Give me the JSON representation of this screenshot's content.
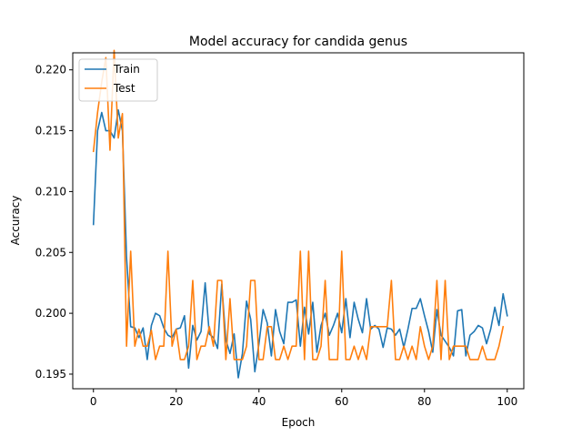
{
  "chart_data": {
    "type": "line",
    "title": "Model accuracy for candida genus",
    "xlabel": "Epoch",
    "ylabel": "Accuracy",
    "xlim": [
      -5,
      104
    ],
    "ylim": [
      0.1938,
      0.2214
    ],
    "xticks": [
      0,
      20,
      40,
      60,
      80,
      100
    ],
    "yticks": [
      0.195,
      0.2,
      0.205,
      0.21,
      0.215,
      0.22
    ],
    "ytick_labels": [
      "0.195",
      "0.200",
      "0.205",
      "0.210",
      "0.215",
      "0.220"
    ],
    "legend_position": "top-left",
    "grid": false,
    "series": [
      {
        "name": "Train",
        "color": "#1f77b4",
        "values": [
          0.2073,
          0.215,
          0.2165,
          0.215,
          0.215,
          0.2144,
          0.2167,
          0.215,
          0.2046,
          0.1989,
          0.1988,
          0.198,
          0.1988,
          0.1962,
          0.199,
          0.2,
          0.1998,
          0.1988,
          0.1982,
          0.198,
          0.1987,
          0.1988,
          0.1998,
          0.1955,
          0.199,
          0.1978,
          0.1985,
          0.2025,
          0.1983,
          0.198,
          0.1971,
          0.2024,
          0.1978,
          0.1967,
          0.1983,
          0.1947,
          0.1967,
          0.201,
          0.1995,
          0.1952,
          0.1975,
          0.2003,
          0.1992,
          0.1965,
          0.2003,
          0.1985,
          0.1975,
          0.2009,
          0.2009,
          0.2011,
          0.1973,
          0.2005,
          0.1983,
          0.2009,
          0.1968,
          0.199,
          0.2,
          0.1982,
          0.199,
          0.2,
          0.1984,
          0.2012,
          0.198,
          0.2009,
          0.1995,
          0.1984,
          0.2012,
          0.1987,
          0.199,
          0.1987,
          0.1972,
          0.1988,
          0.1987,
          0.1982,
          0.1987,
          0.1972,
          0.1987,
          0.2004,
          0.2004,
          0.2012,
          0.1998,
          0.1985,
          0.1968,
          0.2003,
          0.1982,
          0.1977,
          0.1972,
          0.1965,
          0.2002,
          0.2003,
          0.1965,
          0.1982,
          0.1985,
          0.199,
          0.1988,
          0.1975,
          0.1987,
          0.2005,
          0.199,
          0.2016,
          0.1998
        ]
      },
      {
        "name": "Test",
        "color": "#ff7f0e",
        "values": [
          0.2133,
          0.2165,
          0.219,
          0.221,
          0.2134,
          0.2216,
          0.2144,
          0.2164,
          0.1973,
          0.2051,
          0.1973,
          0.1987,
          0.1973,
          0.1973,
          0.1986,
          0.1962,
          0.1973,
          0.1973,
          0.2051,
          0.1973,
          0.1987,
          0.1962,
          0.1962,
          0.1973,
          0.2027,
          0.1962,
          0.1973,
          0.1973,
          0.1989,
          0.1973,
          0.2027,
          0.2027,
          0.1962,
          0.2012,
          0.1962,
          0.1962,
          0.1962,
          0.1973,
          0.2027,
          0.2027,
          0.1962,
          0.1962,
          0.1989,
          0.1989,
          0.1962,
          0.1962,
          0.1973,
          0.1962,
          0.1973,
          0.1973,
          0.2051,
          0.1962,
          0.2051,
          0.1962,
          0.1962,
          0.1973,
          0.2027,
          0.1962,
          0.1962,
          0.1962,
          0.2051,
          0.1962,
          0.1962,
          0.1973,
          0.1962,
          0.1973,
          0.1962,
          0.1989,
          0.1989,
          0.1989,
          0.1989,
          0.1989,
          0.2027,
          0.1962,
          0.1962,
          0.1973,
          0.1962,
          0.1973,
          0.1962,
          0.1989,
          0.1973,
          0.1962,
          0.1973,
          0.2027,
          0.1962,
          0.2027,
          0.1962,
          0.1973,
          0.1973,
          0.1973,
          0.1973,
          0.1962,
          0.1962,
          0.1962,
          0.1973,
          0.1962,
          0.1962,
          0.1962,
          0.1973,
          0.1989
        ]
      }
    ]
  }
}
